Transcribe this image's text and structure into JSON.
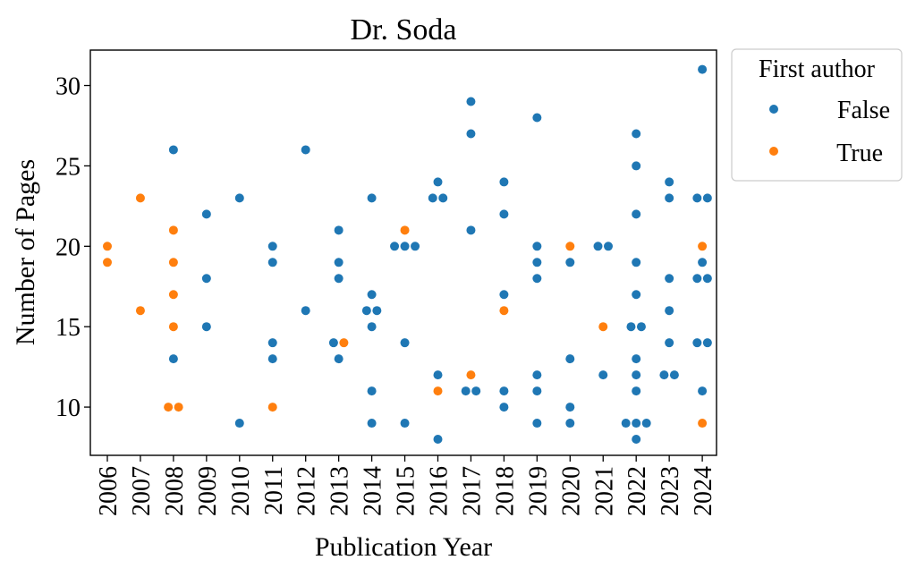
{
  "colors": {
    "false": "#1f77b4",
    "true": "#ff7f0e"
  },
  "chart_data": {
    "type": "scatter",
    "title": "Dr. Soda",
    "xlabel": "Publication Year",
    "ylabel": "Number of Pages",
    "categories": [
      "2006",
      "2007",
      "2008",
      "2009",
      "2010",
      "2011",
      "2012",
      "2013",
      "2014",
      "2015",
      "2016",
      "2017",
      "2018",
      "2019",
      "2020",
      "2021",
      "2022",
      "2023",
      "2024"
    ],
    "ylim": [
      7,
      32.2
    ],
    "yticks": [
      10,
      15,
      20,
      25,
      30
    ],
    "grid": false,
    "legend": {
      "title": "First author",
      "placement": "outside-right-top"
    },
    "series": [
      {
        "name": "False",
        "color": "#1f77b4",
        "groups": [
          {
            "x": "2008",
            "y": [
              13,
              26
            ]
          },
          {
            "x": "2009",
            "y": [
              15,
              18,
              22
            ]
          },
          {
            "x": "2010",
            "y": [
              9,
              23
            ]
          },
          {
            "x": "2011",
            "y": [
              13,
              14,
              19,
              20
            ]
          },
          {
            "x": "2012",
            "y": [
              16,
              26
            ]
          },
          {
            "x": "2013",
            "y": [
              13,
              14,
              18,
              19,
              21
            ]
          },
          {
            "x": "2014",
            "y": [
              9,
              11,
              15,
              16,
              16,
              17,
              23
            ]
          },
          {
            "x": "2015",
            "y": [
              9,
              14,
              20,
              20,
              20
            ]
          },
          {
            "x": "2016",
            "y": [
              8,
              12,
              23,
              23,
              24
            ]
          },
          {
            "x": "2017",
            "y": [
              11,
              11,
              21,
              27,
              29
            ]
          },
          {
            "x": "2018",
            "y": [
              10,
              11,
              17,
              22,
              24
            ]
          },
          {
            "x": "2019",
            "y": [
              9,
              11,
              12,
              18,
              19,
              20,
              28
            ]
          },
          {
            "x": "2020",
            "y": [
              9,
              10,
              13,
              19
            ]
          },
          {
            "x": "2021",
            "y": [
              12,
              20,
              20
            ]
          },
          {
            "x": "2022",
            "y": [
              8,
              9,
              9,
              9,
              11,
              12,
              13,
              15,
              15,
              17,
              19,
              22,
              25,
              27
            ]
          },
          {
            "x": "2023",
            "y": [
              12,
              12,
              14,
              16,
              18,
              23,
              24
            ]
          },
          {
            "x": "2024",
            "y": [
              11,
              14,
              14,
              18,
              18,
              19,
              23,
              23,
              31
            ]
          }
        ]
      },
      {
        "name": "True",
        "color": "#ff7f0e",
        "groups": [
          {
            "x": "2006",
            "y": [
              19,
              20
            ]
          },
          {
            "x": "2007",
            "y": [
              16,
              23
            ]
          },
          {
            "x": "2008",
            "y": [
              10,
              10,
              15,
              17,
              19,
              21
            ]
          },
          {
            "x": "2011",
            "y": [
              10
            ]
          },
          {
            "x": "2013",
            "y": [
              14
            ]
          },
          {
            "x": "2015",
            "y": [
              21
            ]
          },
          {
            "x": "2016",
            "y": [
              11
            ]
          },
          {
            "x": "2017",
            "y": [
              12
            ]
          },
          {
            "x": "2018",
            "y": [
              16
            ]
          },
          {
            "x": "2020",
            "y": [
              20
            ]
          },
          {
            "x": "2021",
            "y": [
              15
            ]
          },
          {
            "x": "2024",
            "y": [
              9,
              20
            ]
          }
        ]
      }
    ]
  }
}
